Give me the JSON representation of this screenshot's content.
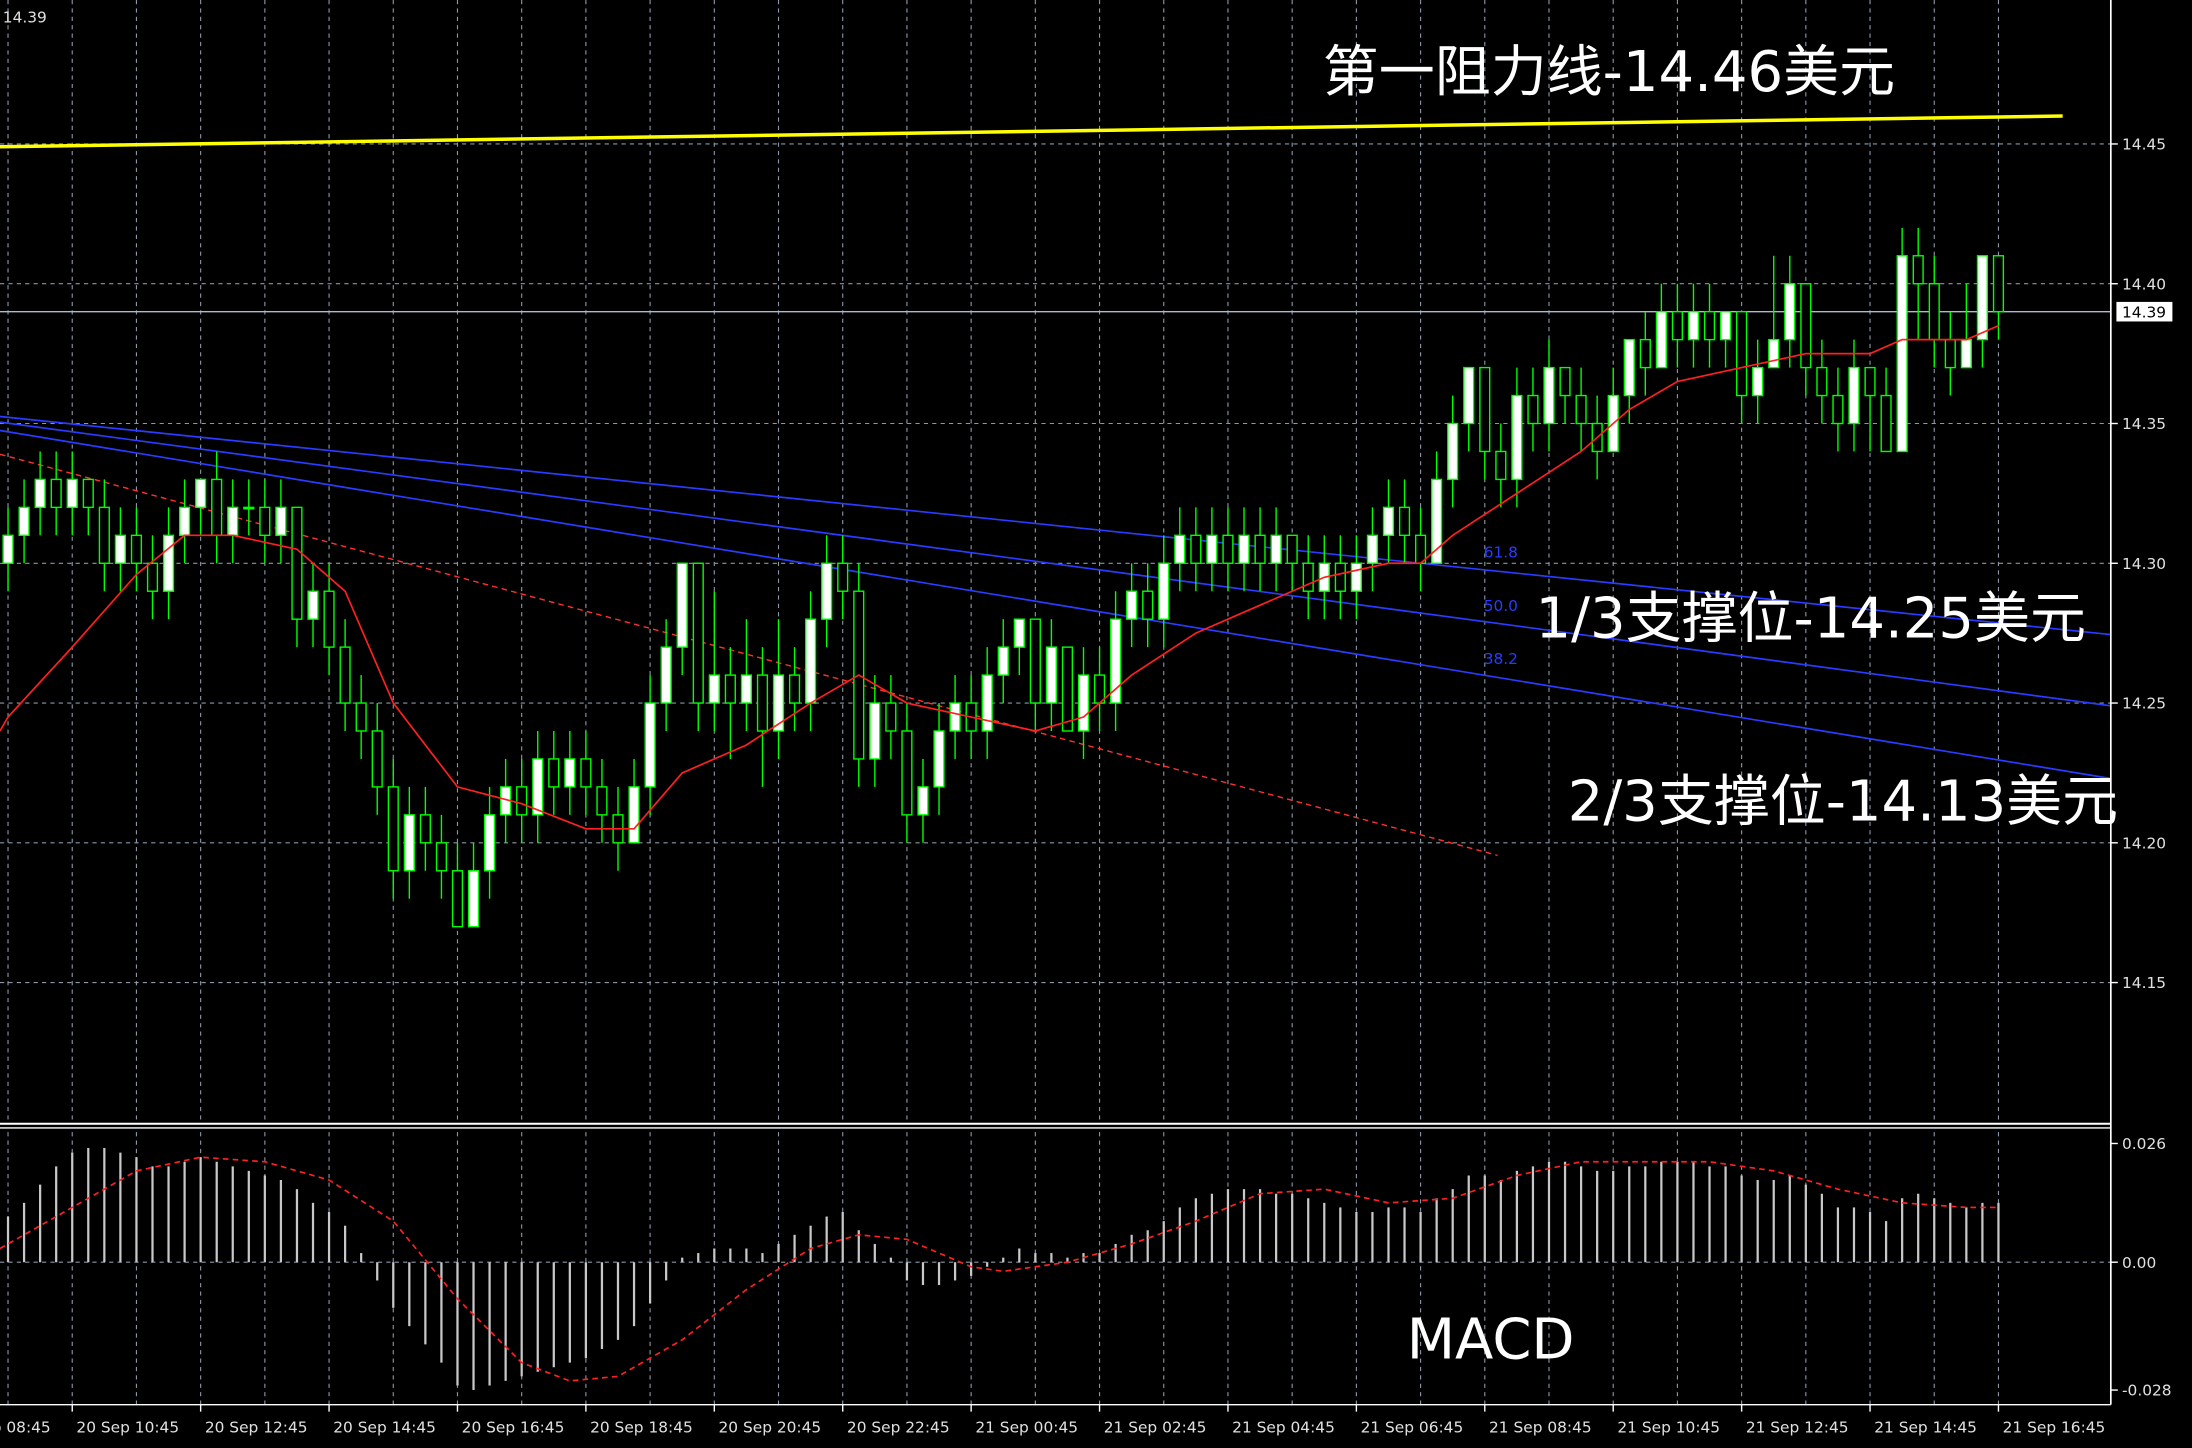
{
  "chart_data": [
    {
      "type": "candlestick",
      "current_price": 14.39,
      "xlim": [
        -0.5,
        131
      ],
      "xticks": [
        {
          "value": -4,
          "label": "20 Sep 08:45"
        },
        {
          "value": 4,
          "label": "20 Sep 10:45"
        },
        {
          "value": 12,
          "label": "20 Sep 12:45"
        },
        {
          "value": 20,
          "label": "20 Sep 14:45"
        },
        {
          "value": 28,
          "label": "20 Sep 16:45"
        },
        {
          "value": 36,
          "label": "20 Sep 18:45"
        },
        {
          "value": 44,
          "label": "20 Sep 20:45"
        },
        {
          "value": 52,
          "label": "20 Sep 22:45"
        },
        {
          "value": 60,
          "label": "21 Sep 00:45"
        },
        {
          "value": 68,
          "label": "21 Sep 02:45"
        },
        {
          "value": 76,
          "label": "21 Sep 04:45"
        },
        {
          "value": 84,
          "label": "21 Sep 06:45"
        },
        {
          "value": 92,
          "label": "21 Sep 08:45"
        },
        {
          "value": 100,
          "label": "21 Sep 10:45"
        },
        {
          "value": 108,
          "label": "21 Sep 12:45"
        },
        {
          "value": 116,
          "label": "21 Sep 14:45"
        },
        {
          "value": 124,
          "label": "21 Sep 16:45"
        }
      ],
      "ylim": [
        14.1,
        14.5015
      ],
      "yticks": [
        14.15,
        {
          "value": 14.2,
          "label": "14.20"
        },
        14.25,
        {
          "value": 14.3,
          "label": "14.30"
        },
        14.35,
        {
          "value": 14.4,
          "label": "14.40"
        },
        14.45
      ],
      "grid": true,
      "color": "#00ff00",
      "open": [
        14.3,
        14.31,
        14.32,
        14.33,
        14.32,
        14.33,
        14.32,
        14.3,
        14.31,
        14.3,
        14.29,
        14.31,
        14.32,
        14.33,
        14.31,
        14.32,
        14.32,
        14.31,
        14.32,
        14.28,
        14.29,
        14.27,
        14.25,
        14.24,
        14.22,
        14.19,
        14.21,
        14.2,
        14.19,
        14.17,
        14.19,
        14.21,
        14.22,
        14.21,
        14.23,
        14.22,
        14.23,
        14.22,
        14.21,
        14.2,
        14.22,
        14.25,
        14.27,
        14.3,
        14.25,
        14.26,
        14.25,
        14.26,
        14.24,
        14.26,
        14.25,
        14.28,
        14.3,
        14.29,
        14.23,
        14.25,
        14.24,
        14.21,
        14.22,
        14.24,
        14.25,
        14.24,
        14.26,
        14.27,
        14.28,
        14.25,
        14.27,
        14.24,
        14.26,
        14.25,
        14.28,
        14.29,
        14.28,
        14.3,
        14.31,
        14.3,
        14.31,
        14.3,
        14.31,
        14.3,
        14.31,
        14.3,
        14.29,
        14.3,
        14.29,
        14.3,
        14.31,
        14.32,
        14.31,
        14.3,
        14.33,
        14.35,
        14.37,
        14.34,
        14.33,
        14.36,
        14.35,
        14.37,
        14.36,
        14.35,
        14.34,
        14.36,
        14.38,
        14.37,
        14.39,
        14.38,
        14.39,
        14.38,
        14.39,
        14.36,
        14.37,
        14.38,
        14.4,
        14.37,
        14.36,
        14.35,
        14.37,
        14.36,
        14.34,
        14.41,
        14.4,
        14.38,
        14.37,
        14.38,
        14.41
      ],
      "high": [
        14.32,
        14.33,
        14.34,
        14.34,
        14.34,
        14.33,
        14.33,
        14.32,
        14.32,
        14.31,
        14.32,
        14.33,
        14.33,
        14.34,
        14.33,
        14.33,
        14.33,
        14.33,
        14.32,
        14.3,
        14.3,
        14.28,
        14.26,
        14.25,
        14.23,
        14.22,
        14.22,
        14.21,
        14.2,
        14.2,
        14.22,
        14.23,
        14.23,
        14.24,
        14.24,
        14.24,
        14.24,
        14.23,
        14.22,
        14.23,
        14.26,
        14.28,
        14.3,
        14.3,
        14.29,
        14.27,
        14.28,
        14.27,
        14.28,
        14.27,
        14.29,
        14.31,
        14.31,
        14.3,
        14.26,
        14.26,
        14.25,
        14.23,
        14.25,
        14.26,
        14.26,
        14.27,
        14.28,
        14.28,
        14.28,
        14.28,
        14.27,
        14.27,
        14.27,
        14.29,
        14.3,
        14.3,
        14.31,
        14.32,
        14.32,
        14.32,
        14.32,
        14.32,
        14.32,
        14.32,
        14.31,
        14.31,
        14.31,
        14.31,
        14.31,
        14.32,
        14.33,
        14.33,
        14.32,
        14.34,
        14.36,
        14.37,
        14.37,
        14.35,
        14.37,
        14.37,
        14.38,
        14.37,
        14.37,
        14.36,
        14.37,
        14.38,
        14.39,
        14.4,
        14.4,
        14.4,
        14.4,
        14.39,
        14.39,
        14.38,
        14.41,
        14.41,
        14.4,
        14.38,
        14.37,
        14.38,
        14.37,
        14.37,
        14.42,
        14.42,
        14.41,
        14.39,
        14.4,
        14.41,
        14.41
      ],
      "low": [
        14.29,
        14.3,
        14.31,
        14.31,
        14.31,
        14.31,
        14.29,
        14.29,
        14.29,
        14.28,
        14.28,
        14.3,
        14.31,
        14.3,
        14.3,
        14.31,
        14.3,
        14.3,
        14.27,
        14.27,
        14.26,
        14.24,
        14.23,
        14.21,
        14.18,
        14.18,
        14.19,
        14.18,
        14.17,
        14.17,
        14.18,
        14.2,
        14.2,
        14.2,
        14.21,
        14.21,
        14.21,
        14.2,
        14.19,
        14.2,
        14.21,
        14.24,
        14.26,
        14.24,
        14.24,
        14.23,
        14.24,
        14.22,
        14.23,
        14.24,
        14.24,
        14.27,
        14.28,
        14.22,
        14.22,
        14.23,
        14.2,
        14.2,
        14.21,
        14.23,
        14.23,
        14.23,
        14.25,
        14.26,
        14.24,
        14.24,
        14.24,
        14.23,
        14.24,
        14.24,
        14.27,
        14.27,
        14.27,
        14.29,
        14.29,
        14.29,
        14.29,
        14.29,
        14.29,
        14.29,
        14.29,
        14.28,
        14.28,
        14.28,
        14.28,
        14.29,
        14.3,
        14.3,
        14.29,
        14.3,
        14.32,
        14.34,
        14.33,
        14.32,
        14.32,
        14.34,
        14.34,
        14.35,
        14.34,
        14.33,
        14.34,
        14.35,
        14.36,
        14.37,
        14.37,
        14.37,
        14.37,
        14.37,
        14.35,
        14.35,
        14.37,
        14.37,
        14.36,
        14.35,
        14.34,
        14.34,
        14.34,
        14.34,
        14.34,
        14.38,
        14.37,
        14.36,
        14.37,
        14.37,
        14.38
      ],
      "close": [
        14.31,
        14.32,
        14.33,
        14.32,
        14.33,
        14.32,
        14.3,
        14.31,
        14.3,
        14.29,
        14.31,
        14.32,
        14.33,
        14.31,
        14.32,
        14.32,
        14.31,
        14.32,
        14.28,
        14.29,
        14.27,
        14.25,
        14.24,
        14.22,
        14.19,
        14.21,
        14.2,
        14.19,
        14.17,
        14.19,
        14.21,
        14.22,
        14.21,
        14.23,
        14.22,
        14.23,
        14.22,
        14.21,
        14.2,
        14.22,
        14.25,
        14.27,
        14.3,
        14.25,
        14.26,
        14.25,
        14.26,
        14.24,
        14.26,
        14.25,
        14.28,
        14.3,
        14.29,
        14.23,
        14.25,
        14.24,
        14.21,
        14.22,
        14.24,
        14.25,
        14.24,
        14.26,
        14.27,
        14.28,
        14.25,
        14.27,
        14.24,
        14.26,
        14.25,
        14.28,
        14.29,
        14.28,
        14.3,
        14.31,
        14.3,
        14.31,
        14.3,
        14.31,
        14.3,
        14.31,
        14.3,
        14.29,
        14.3,
        14.29,
        14.3,
        14.31,
        14.32,
        14.31,
        14.3,
        14.33,
        14.35,
        14.37,
        14.34,
        14.33,
        14.36,
        14.35,
        14.37,
        14.36,
        14.35,
        14.34,
        14.36,
        14.38,
        14.37,
        14.39,
        14.38,
        14.39,
        14.38,
        14.39,
        14.36,
        14.37,
        14.38,
        14.4,
        14.37,
        14.36,
        14.35,
        14.37,
        14.36,
        14.34,
        14.41,
        14.4,
        14.38,
        14.37,
        14.38,
        14.41,
        14.39
      ],
      "moving_average": {
        "color": "#ff2020",
        "x": [
          -0.5,
          0,
          4,
          8,
          11,
          14,
          18,
          21,
          24,
          28,
          32,
          36,
          39,
          42,
          46,
          50,
          53,
          56,
          60,
          64,
          67,
          70,
          74,
          78,
          82,
          86,
          88,
          90,
          94,
          98,
          101,
          104,
          108,
          112,
          116,
          118,
          122,
          124
        ],
        "values": [
          14.24,
          14.245,
          14.27,
          14.296,
          14.31,
          14.31,
          14.305,
          14.29,
          14.25,
          14.22,
          14.214,
          14.205,
          14.205,
          14.225,
          14.235,
          14.25,
          14.26,
          14.25,
          14.245,
          14.24,
          14.245,
          14.26,
          14.275,
          14.285,
          14.295,
          14.3,
          14.3,
          14.31,
          14.325,
          14.34,
          14.355,
          14.365,
          14.37,
          14.375,
          14.375,
          14.38,
          14.38,
          14.385
        ]
      },
      "resistance_line": {
        "color": "#ffff00",
        "x": [
          -0.5,
          128
        ],
        "values": [
          14.449,
          14.46
        ]
      },
      "fib_lines": [
        {
          "color": "#2a3cff",
          "x": [
            -0.5,
            131
          ],
          "values": [
            14.3525,
            14.2745
          ]
        },
        {
          "color": "#2a3cff",
          "x": [
            -0.5,
            131
          ],
          "values": [
            14.3505,
            14.249
          ]
        },
        {
          "color": "#2a3cff",
          "x": [
            -0.5,
            131
          ],
          "values": [
            14.3475,
            14.223
          ]
        }
      ],
      "fib_levels": [
        61.8,
        {
          "value": 50,
          "label": "50.0"
        },
        38.2
      ],
      "trend_line": {
        "color": "#ff3030",
        "x": [
          -0.5,
          92.8
        ],
        "values": [
          14.339,
          14.1955
        ]
      },
      "annotations": [
        "第一阻力线-14.46美元",
        "1/3支撑位-14.25美元",
        "2/3支撑位-14.13美元"
      ]
    },
    {
      "type": "bar",
      "title": "MACD",
      "xlim": [
        -0.5,
        131
      ],
      "ylim": [
        -0.0312,
        0.0291
      ],
      "yticks": [
        0.026,
        {
          "value": 0,
          "label": "0.00"
        },
        -0.028
      ],
      "color": "#c8c8c8",
      "values": [
        0.01,
        0.013,
        0.017,
        0.021,
        0.024,
        0.025,
        0.025,
        0.024,
        0.023,
        0.021,
        0.021,
        0.022,
        0.023,
        0.022,
        0.021,
        0.02,
        0.019,
        0.018,
        0.016,
        0.013,
        0.011,
        0.008,
        0.002,
        -0.004,
        -0.01,
        -0.014,
        -0.018,
        -0.022,
        -0.027,
        -0.028,
        -0.027,
        -0.026,
        -0.025,
        -0.024,
        -0.023,
        -0.022,
        -0.021,
        -0.019,
        -0.017,
        -0.014,
        -0.009,
        -0.004,
        0.001,
        0.002,
        0.003,
        0.003,
        0.003,
        0.002,
        0.004,
        0.006,
        0.008,
        0.01,
        0.011,
        0.007,
        0.004,
        0.001,
        -0.004,
        -0.005,
        -0.005,
        -0.004,
        -0.003,
        -0.001,
        0.001,
        0.003,
        0.002,
        0.002,
        0.001,
        0.002,
        0.002,
        0.004,
        0.006,
        0.007,
        0.009,
        0.012,
        0.014,
        0.015,
        0.016,
        0.016,
        0.016,
        0.015,
        0.015,
        0.014,
        0.013,
        0.012,
        0.011,
        0.011,
        0.012,
        0.012,
        0.011,
        0.014,
        0.016,
        0.019,
        0.019,
        0.018,
        0.02,
        0.021,
        0.022,
        0.022,
        0.021,
        0.02,
        0.02,
        0.021,
        0.021,
        0.022,
        0.022,
        0.022,
        0.021,
        0.021,
        0.019,
        0.018,
        0.018,
        0.019,
        0.017,
        0.015,
        0.012,
        0.012,
        0.011,
        0.009,
        0.014,
        0.015,
        0.014,
        0.013,
        0.012,
        0.013,
        0.013
      ],
      "signal": {
        "color": "#ff2020",
        "x": [
          -0.5,
          4,
          8,
          12,
          16,
          20,
          24,
          28,
          32,
          35,
          38,
          42,
          46,
          50,
          53,
          56,
          60,
          62,
          66,
          70,
          74,
          78,
          82,
          86,
          90,
          94,
          98,
          102,
          106,
          110,
          114,
          118,
          122,
          124
        ],
        "values": [
          0.003,
          0.012,
          0.02,
          0.023,
          0.022,
          0.018,
          0.009,
          -0.008,
          -0.022,
          -0.026,
          -0.025,
          -0.017,
          -0.006,
          0.003,
          0.006,
          0.005,
          -0.001,
          -0.002,
          0.0,
          0.004,
          0.009,
          0.015,
          0.016,
          0.013,
          0.014,
          0.019,
          0.022,
          0.022,
          0.022,
          0.02,
          0.016,
          0.013,
          0.012,
          0.012
        ]
      }
    }
  ]
}
